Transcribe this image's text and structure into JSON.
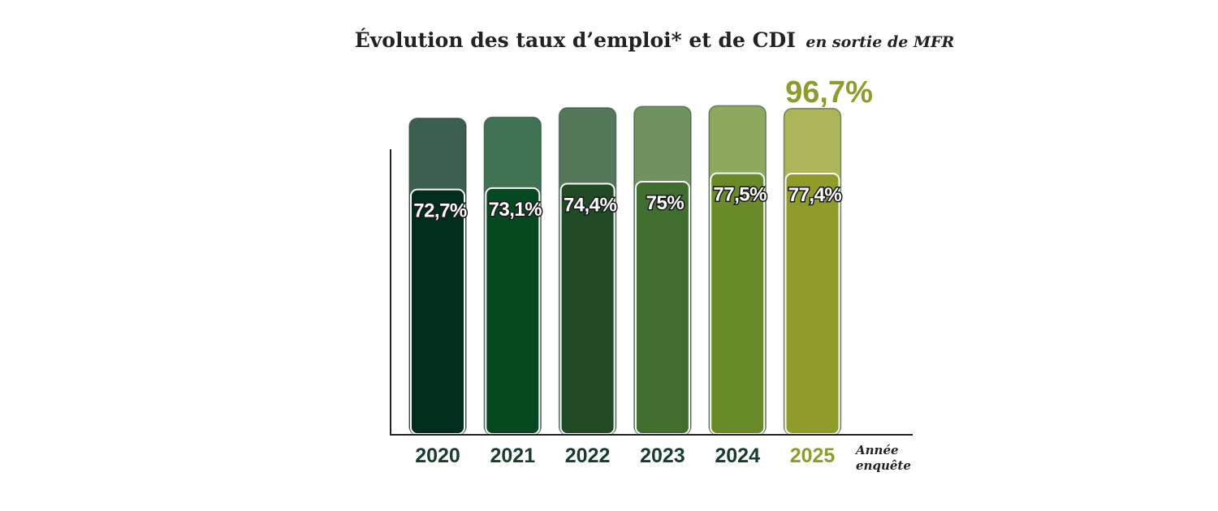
{
  "chart_data": {
    "type": "bar",
    "title": "Évolution des taux d’emploi* et de CDI",
    "subtitle": "en sortie de MFR",
    "xlabel_line1": "Année",
    "xlabel_line2": "enquête",
    "categories": [
      "2020",
      "2021",
      "2022",
      "2023",
      "2024",
      "2025"
    ],
    "series": [
      {
        "key": "emploi",
        "values": [
          93.8,
          94.1,
          96.9,
          97.3,
          97.5,
          96.7
        ],
        "colors": [
          "#3c5f4f",
          "#427254",
          "#56785a",
          "#6f9260",
          "#8fa95e",
          "#adb45a"
        ]
      },
      {
        "key": "cdi",
        "values": [
          72.7,
          73.1,
          74.4,
          75,
          77.5,
          77.4
        ],
        "labels": [
          "72,7%",
          "73,1%",
          "74,4%",
          "75%",
          "77,5%",
          "77,4%"
        ],
        "colors": [
          "#002d1c",
          "#064822",
          "#204b24",
          "#406e2e",
          "#6a8a29",
          "#919b2a"
        ]
      }
    ],
    "peak_label": "96,7%",
    "year_colors": [
      "#173e2a",
      "#173e2a",
      "#173e2a",
      "#173e2a",
      "#173e2a",
      "#8f9c2d"
    ],
    "peak_color": "#8f9c2d",
    "ylim": [
      0,
      100
    ],
    "grid": false,
    "legend": "none"
  }
}
